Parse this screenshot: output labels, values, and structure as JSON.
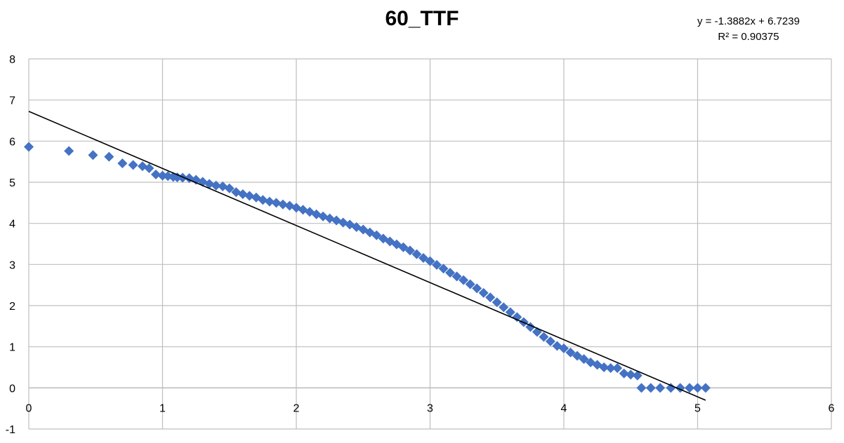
{
  "chart_data": {
    "type": "scatter",
    "title": "60_TTF",
    "xlabel": "",
    "ylabel": "",
    "xlim": [
      0,
      6
    ],
    "ylim": [
      -1,
      8
    ],
    "x_ticks": [
      "0",
      "1",
      "2",
      "3",
      "4",
      "5",
      "6"
    ],
    "y_ticks": [
      "-1",
      "0",
      "1",
      "2",
      "3",
      "4",
      "5",
      "6",
      "7",
      "8"
    ],
    "grid": true,
    "marker": "diamond",
    "colors": {
      "points": "#4472C4",
      "trendline": "#000000",
      "grid": "#BFBFBF"
    },
    "series": [
      {
        "points": [
          [
            0.0,
            5.86
          ],
          [
            0.3,
            5.76
          ],
          [
            0.48,
            5.66
          ],
          [
            0.6,
            5.62
          ],
          [
            0.7,
            5.46
          ],
          [
            0.78,
            5.42
          ],
          [
            0.85,
            5.39
          ],
          [
            0.9,
            5.34
          ],
          [
            0.95,
            5.19
          ],
          [
            1.0,
            5.16
          ],
          [
            1.04,
            5.15
          ],
          [
            1.08,
            5.13
          ],
          [
            1.11,
            5.12
          ],
          [
            1.15,
            5.11
          ],
          [
            1.2,
            5.1
          ],
          [
            1.25,
            5.06
          ],
          [
            1.3,
            5.01
          ],
          [
            1.35,
            4.96
          ],
          [
            1.4,
            4.92
          ],
          [
            1.45,
            4.9
          ],
          [
            1.5,
            4.85
          ],
          [
            1.55,
            4.76
          ],
          [
            1.6,
            4.71
          ],
          [
            1.65,
            4.67
          ],
          [
            1.7,
            4.63
          ],
          [
            1.75,
            4.57
          ],
          [
            1.8,
            4.53
          ],
          [
            1.85,
            4.5
          ],
          [
            1.9,
            4.46
          ],
          [
            1.95,
            4.43
          ],
          [
            2.0,
            4.38
          ],
          [
            2.05,
            4.33
          ],
          [
            2.1,
            4.28
          ],
          [
            2.15,
            4.22
          ],
          [
            2.2,
            4.17
          ],
          [
            2.25,
            4.12
          ],
          [
            2.3,
            4.07
          ],
          [
            2.35,
            4.02
          ],
          [
            2.4,
            3.97
          ],
          [
            2.45,
            3.91
          ],
          [
            2.5,
            3.85
          ],
          [
            2.55,
            3.78
          ],
          [
            2.6,
            3.71
          ],
          [
            2.65,
            3.63
          ],
          [
            2.7,
            3.56
          ],
          [
            2.75,
            3.49
          ],
          [
            2.8,
            3.42
          ],
          [
            2.85,
            3.34
          ],
          [
            2.9,
            3.25
          ],
          [
            2.95,
            3.16
          ],
          [
            3.0,
            3.08
          ],
          [
            3.05,
            2.99
          ],
          [
            3.1,
            2.9
          ],
          [
            3.15,
            2.8
          ],
          [
            3.2,
            2.71
          ],
          [
            3.25,
            2.62
          ],
          [
            3.3,
            2.52
          ],
          [
            3.35,
            2.42
          ],
          [
            3.4,
            2.31
          ],
          [
            3.45,
            2.2
          ],
          [
            3.5,
            2.08
          ],
          [
            3.55,
            1.96
          ],
          [
            3.6,
            1.84
          ],
          [
            3.65,
            1.72
          ],
          [
            3.7,
            1.6
          ],
          [
            3.75,
            1.48
          ],
          [
            3.8,
            1.36
          ],
          [
            3.85,
            1.24
          ],
          [
            3.9,
            1.13
          ],
          [
            3.95,
            1.02
          ],
          [
            4.0,
            0.96
          ],
          [
            4.05,
            0.86
          ],
          [
            4.1,
            0.78
          ],
          [
            4.15,
            0.7
          ],
          [
            4.2,
            0.62
          ],
          [
            4.25,
            0.56
          ],
          [
            4.3,
            0.5
          ],
          [
            4.35,
            0.48
          ],
          [
            4.4,
            0.48
          ],
          [
            4.45,
            0.35
          ],
          [
            4.5,
            0.32
          ],
          [
            4.55,
            0.3
          ],
          [
            4.58,
            0.0
          ],
          [
            4.65,
            0.0
          ],
          [
            4.72,
            0.0
          ],
          [
            4.8,
            0.0
          ],
          [
            4.87,
            0.0
          ],
          [
            4.94,
            0.0
          ],
          [
            5.0,
            0.0
          ],
          [
            5.06,
            0.0
          ]
        ]
      }
    ],
    "trendline": {
      "type": "linear",
      "slope": -1.3882,
      "intercept": 6.7239,
      "x_range": [
        0,
        5.06
      ],
      "equation": "y = -1.3882x + 6.7239",
      "r_squared": "R² = 0.90375"
    }
  }
}
